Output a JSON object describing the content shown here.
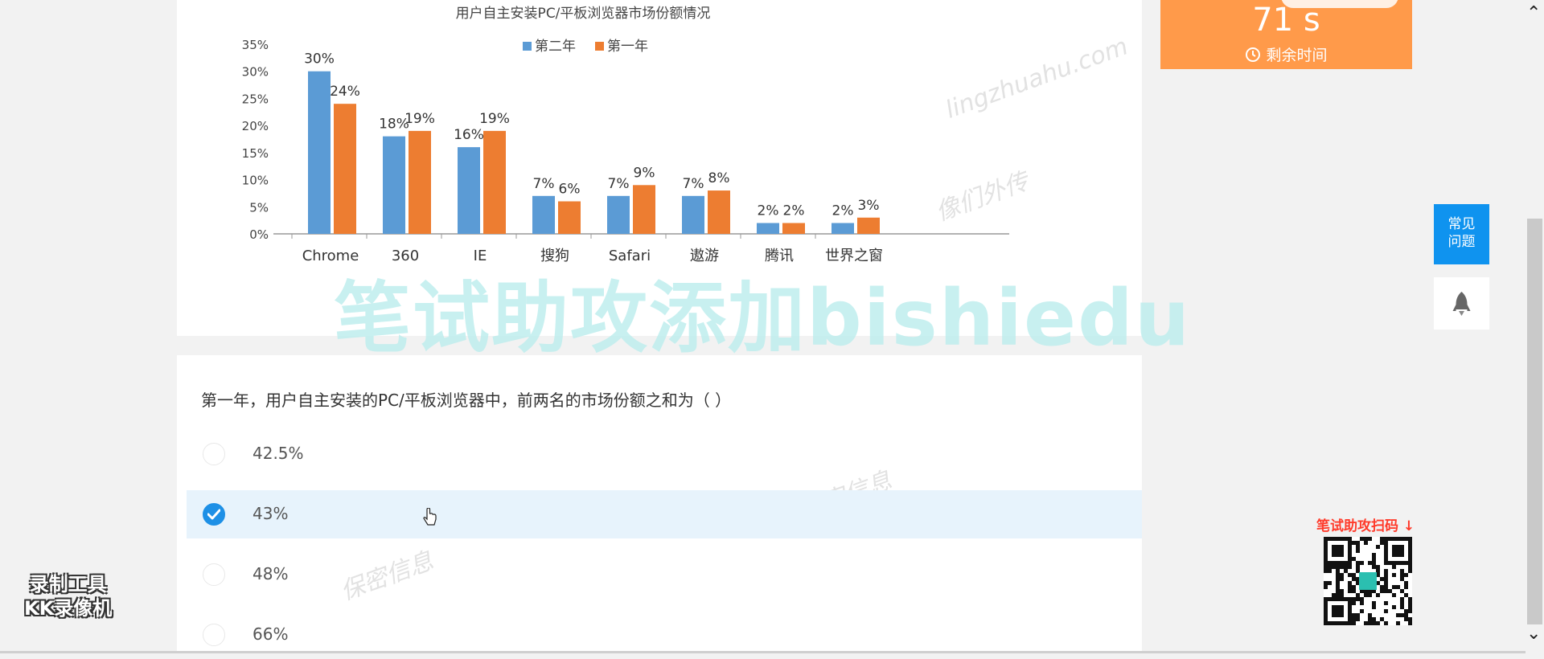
{
  "chart_data": {
    "type": "bar",
    "title": "用户自主安装PC/平板浏览器市场份额情况",
    "categories": [
      "Chrome",
      "360",
      "IE",
      "搜狗",
      "Safari",
      "遨游",
      "腾讯",
      "世界之窗"
    ],
    "series": [
      {
        "name": "第二年",
        "values": [
          30,
          18,
          16,
          7,
          7,
          7,
          2,
          2
        ],
        "labels": [
          "30%",
          "18%",
          "16%",
          "7%",
          "7%",
          "7%",
          "2%",
          "2%"
        ],
        "color": "#5b9bd5"
      },
      {
        "name": "第一年",
        "values": [
          24,
          19,
          19,
          6,
          9,
          8,
          2,
          3
        ],
        "labels": [
          "24%",
          "19%",
          "19%",
          "6%",
          "9%",
          "8%",
          "2%",
          "3%"
        ],
        "color": "#ed7d31"
      }
    ],
    "yticks": [
      "0%",
      "5%",
      "10%",
      "15%",
      "20%",
      "25%",
      "30%",
      "35%"
    ],
    "ylim": [
      0,
      35
    ],
    "legend": "top-center",
    "grid": false
  },
  "watermark": "笔试助攻添加bishiedu",
  "faint_watermarks": [
    "lingzhuahu.com",
    "像们外传",
    "保密信息",
    "保密信息"
  ],
  "question": {
    "text": "第一年，用户自主安装的PC/平板浏览器中，前两名的市场份额之和为（ ）",
    "options": [
      {
        "label": "42.5%",
        "selected": false
      },
      {
        "label": "43%",
        "selected": true
      },
      {
        "label": "48%",
        "selected": false
      },
      {
        "label": "66%",
        "selected": false
      }
    ]
  },
  "timer": {
    "value": "71 s",
    "label": "剩余时间",
    "color": "#ff9a4a"
  },
  "faq": {
    "label": "常见问题"
  },
  "qr": {
    "label": "笔试助攻扫码 ↓"
  },
  "recorder": {
    "line1": "录制工具",
    "line2": "KK录像机"
  },
  "icons": {
    "clock": "clock-icon",
    "rocket": "rocket-icon",
    "check": "check-icon"
  }
}
